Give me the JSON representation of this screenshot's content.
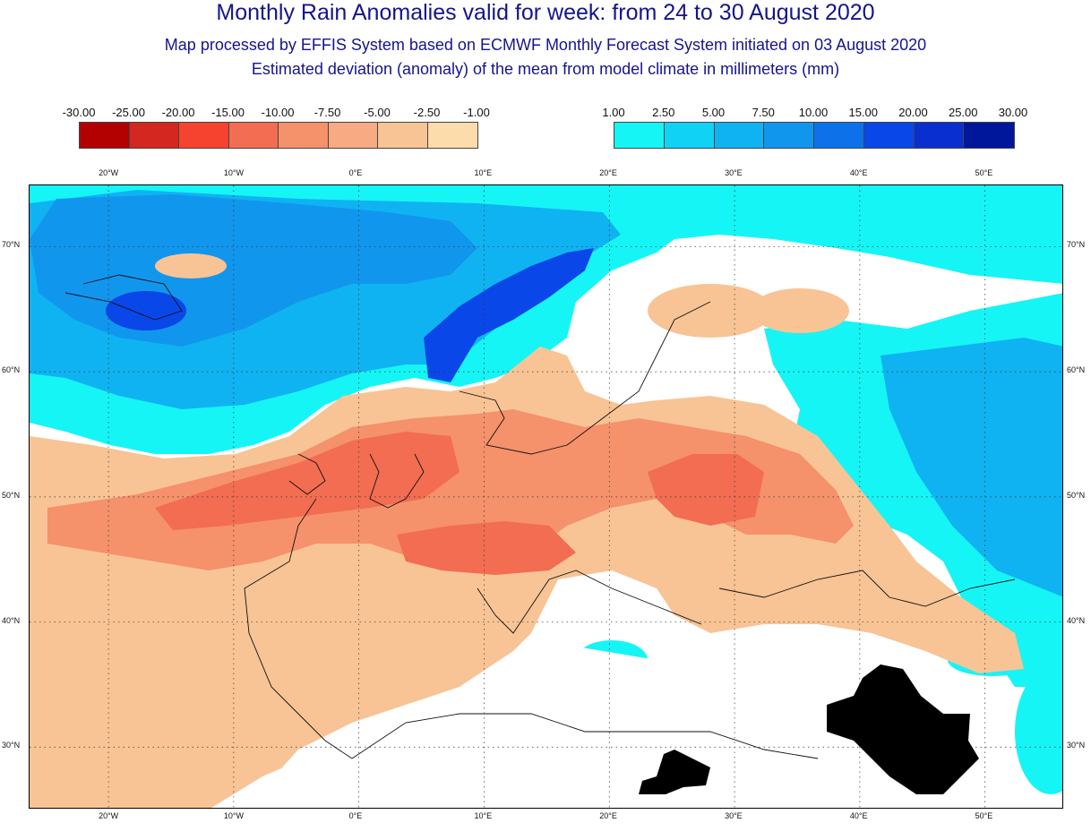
{
  "title": {
    "main": "Monthly Rain Anomalies valid for week: from 24 to 30 August 2020",
    "sub1": "Map processed by EFFIS System based on ECMWF Monthly Forecast System initiated on 03 August 2020",
    "sub2": "Estimated deviation (anomaly) of the mean from model climate in millimeters (mm)"
  },
  "legend_negative": {
    "labels": [
      "-30.00",
      "-25.00",
      "-20.00",
      "-15.00",
      "-10.00",
      "-7.50",
      "-5.00",
      "-2.50",
      "-1.00"
    ],
    "colors": [
      "#b30000",
      "#d42720",
      "#f5432f",
      "#f26d52",
      "#f5916b",
      "#f8aa82",
      "#f8c495",
      "#fbdcaa"
    ]
  },
  "legend_positive": {
    "labels": [
      "1.00",
      "2.50",
      "5.00",
      "7.50",
      "10.00",
      "15.00",
      "20.00",
      "25.00",
      "30.00"
    ],
    "colors": [
      "#16f5f5",
      "#10d2f5",
      "#0fb3f2",
      "#1196ee",
      "#0d72ea",
      "#0a47e8",
      "#0a2fd0",
      "#00179c"
    ]
  },
  "map": {
    "longitude_labels": [
      "20°W",
      "10°W",
      "0°E",
      "10°E",
      "20°E",
      "30°E",
      "40°E",
      "50°E"
    ],
    "latitude_labels": [
      "70°N",
      "60°N",
      "50°N",
      "40°N",
      "30°N"
    ],
    "no_data_color": "#000000",
    "colors": {
      "neutral": "#ffffff",
      "pos_light": "#16f5f5",
      "pos_mid": "#0fb3f2",
      "pos_dark": "#1196ee",
      "pos_deep": "#0a47e8",
      "neg_light": "#f8c495",
      "neg_mid": "#f5916b",
      "neg_dark": "#f26d52",
      "coast": "#111111"
    }
  }
}
